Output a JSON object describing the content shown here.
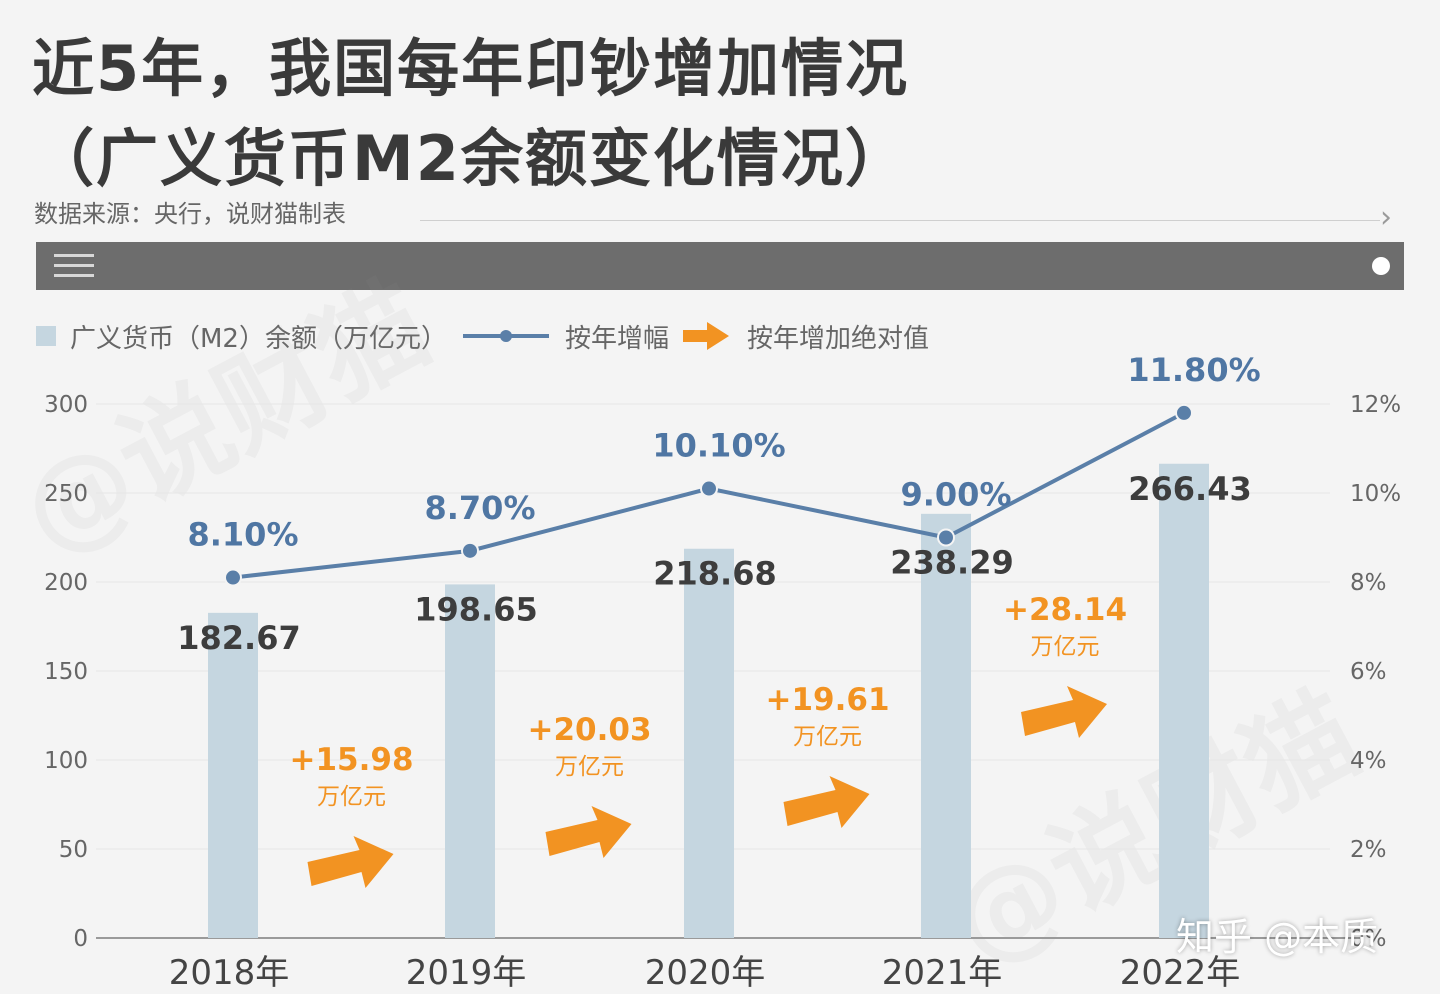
{
  "header": {
    "title_line1": "近5年，我国每年印钞增加情况",
    "title_line2": "（广义货币M2余额变化情况）",
    "source": "数据来源：央行，说财猫制表"
  },
  "icons": {
    "menu": "menu-icon",
    "dot": "dot-icon",
    "chevron": "chevron-right-icon",
    "arrow": "arrow-right-icon"
  },
  "legend": {
    "bar": "广义货币（M2）余额（万亿元）",
    "line": "按年增幅",
    "arrow": "按年增加绝对值"
  },
  "watermark": "@说财猫",
  "zhihu_mark": "知乎 @本质",
  "colors": {
    "bar": "#c5d6e0",
    "line": "#5a7fa8",
    "pct_label": "#4f76a3",
    "value_label": "#3d3d3d",
    "increment": "#f29322"
  },
  "chart_data": {
    "type": "bar",
    "categories": [
      "2018年",
      "2019年",
      "2020年",
      "2021年",
      "2022年"
    ],
    "values": [
      182.67,
      198.65,
      218.68,
      238.29,
      266.43
    ],
    "value_labels": [
      "182.67",
      "198.65",
      "218.68",
      "238.29",
      "266.43"
    ],
    "ylim": [
      0,
      300
    ],
    "yticks": [
      "0",
      "50",
      "100",
      "150",
      "200",
      "250",
      "300"
    ],
    "y2lim": [
      0,
      12
    ],
    "y2ticks": [
      "0%",
      "2%",
      "4%",
      "6%",
      "8%",
      "10%",
      "12%"
    ],
    "line": {
      "values": [
        8.1,
        8.7,
        10.1,
        9.0,
        11.8
      ],
      "labels": [
        "8.10%",
        "8.70%",
        "10.10%",
        "9.00%",
        "11.80%"
      ]
    },
    "increments": [
      {
        "value": "+15.98",
        "unit": "万亿元"
      },
      {
        "value": "+20.03",
        "unit": "万亿元"
      },
      {
        "value": "+19.61",
        "unit": "万亿元"
      },
      {
        "value": "+28.14",
        "unit": "万亿元"
      }
    ],
    "grid": true,
    "legend_position": "top-left"
  }
}
